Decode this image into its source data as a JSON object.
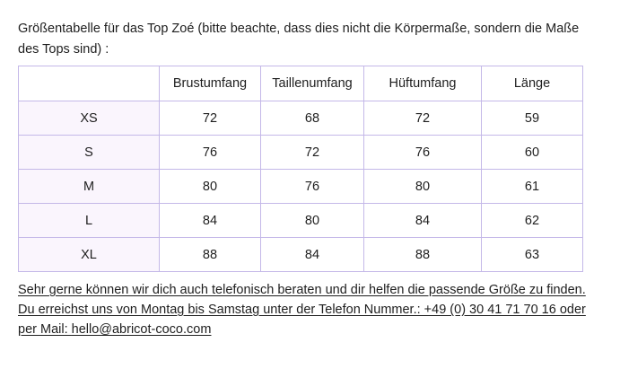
{
  "intro": {
    "lines": [
      "Größentabelle für das Top Zoé (bitte beachte, dass dies nicht die Körpermaße, sondern die Maße",
      "des Tops sind) :"
    ]
  },
  "table": {
    "columns": [
      "",
      "Brustumfang",
      "Taillenumfang",
      "Hüftumfang",
      "Länge"
    ],
    "rows": [
      {
        "size": "XS",
        "values": [
          72,
          68,
          72,
          59
        ]
      },
      {
        "size": "S",
        "values": [
          76,
          72,
          76,
          60
        ]
      },
      {
        "size": "M",
        "values": [
          80,
          76,
          80,
          61
        ]
      },
      {
        "size": "L",
        "values": [
          84,
          80,
          84,
          62
        ]
      },
      {
        "size": "XL",
        "values": [
          88,
          84,
          88,
          63
        ]
      }
    ]
  },
  "footer": {
    "lines": [
      "Sehr gerne können wir dich auch telefonisch beraten und dir helfen die passende Größe zu finden.",
      "Du erreichst uns von Montag bis Samstag unter der Telefon Nummer.: +49 (0) 30 41 71 70 16 oder"
    ],
    "mail_prefix": "per Mail: ",
    "email": "hello@abricot-coco.com"
  },
  "colors": {
    "table_border": "#c4b8e8",
    "row_label_background": "#faf5fd",
    "text": "#1e1e1e"
  }
}
